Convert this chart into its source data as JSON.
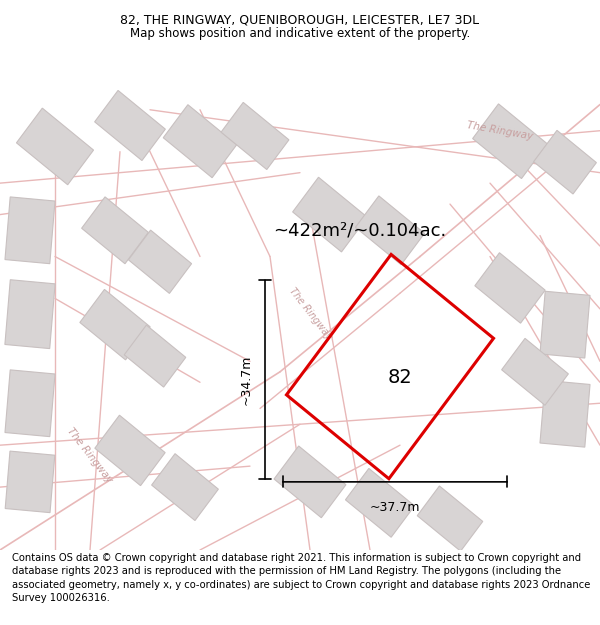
{
  "title_line1": "82, THE RINGWAY, QUENIBOROUGH, LEICESTER, LE7 3DL",
  "title_line2": "Map shows position and indicative extent of the property.",
  "area_text": "~422m²/~0.104ac.",
  "property_number": "82",
  "width_label": "~37.7m",
  "height_label": "~34.7m",
  "map_bg": "#f5f3f3",
  "road_line_color": "#e8b8b8",
  "building_fill": "#d8d4d4",
  "building_edge": "#c8c0c0",
  "property_stroke": "#dd0000",
  "street_label_color": "#c8a0a0",
  "footer_lines": [
    "Contains OS data © Crown copyright and database right 2021. This information is subject to Crown copyright and database rights 2023 and is reproduced with the permission of",
    "HM Land Registry. The polygons (including the associated geometry, namely x, y co-ordinates) are subject to Crown copyright and database rights 2023 Ordnance Survey",
    "100026316."
  ],
  "title_fontsize": 9.0,
  "subtitle_fontsize": 8.5,
  "footer_fontsize": 7.2,
  "area_fontsize": 13,
  "number_fontsize": 14,
  "dim_fontsize": 9
}
